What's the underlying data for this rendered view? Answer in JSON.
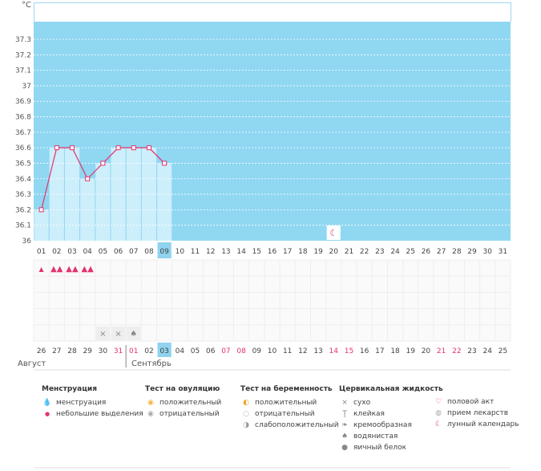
{
  "chart_data": {
    "type": "line",
    "unit_label": "°C",
    "y_ticks": [
      "37.3",
      "37.2",
      "37.1",
      "37",
      "36.9",
      "36.8",
      "36.7",
      "36.6",
      "36.5",
      "36.4",
      "36.3",
      "36.2",
      "36.1",
      "36"
    ],
    "ylim": [
      36,
      37.3
    ],
    "x_top": [
      "01",
      "02",
      "03",
      "04",
      "05",
      "06",
      "07",
      "08",
      "09",
      "10",
      "11",
      "12",
      "13",
      "14",
      "15",
      "16",
      "17",
      "18",
      "19",
      "20",
      "21",
      "22",
      "23",
      "24",
      "25",
      "26",
      "27",
      "28",
      "29",
      "30",
      "31"
    ],
    "x_bottom": [
      "26",
      "27",
      "28",
      "29",
      "30",
      "31",
      "01",
      "02",
      "03",
      "04",
      "05",
      "06",
      "07",
      "08",
      "09",
      "10",
      "11",
      "12",
      "13",
      "14",
      "15",
      "16",
      "17",
      "18",
      "19",
      "20",
      "21",
      "22",
      "23",
      "24",
      "25"
    ],
    "series": [
      {
        "values": [
          36.2,
          36.6,
          36.6,
          36.4,
          36.5,
          36.6,
          36.6,
          36.6,
          36.5
        ]
      }
    ],
    "selected_day": "09",
    "selected_bottom": "03",
    "bottom_red_days": [
      "31",
      "01",
      "07",
      "08",
      "14",
      "15",
      "21",
      "22"
    ],
    "months": [
      "Август",
      "Сентябрь"
    ],
    "menstruation_days": [
      "01",
      "02",
      "03",
      "04"
    ],
    "menstruation_kind": [
      "небольшие выделения",
      "менструация",
      "менструация",
      "менструация"
    ],
    "fluid_marks": [
      {
        "day": "05",
        "kind": "сухо"
      },
      {
        "day": "06",
        "kind": "сухо"
      },
      {
        "day": "07",
        "kind": "водянистая"
      }
    ],
    "lunar_day": "20"
  },
  "colors": {
    "plot_bg": "#90d7f2",
    "bar": "#cdeefb",
    "line": "#e3336f",
    "selected": "#8fd3ef",
    "grid": "#ffffff"
  },
  "legend": {
    "menstruation": {
      "title": "Менструация",
      "items": [
        "менструация",
        "небольшие выделения"
      ]
    },
    "ovulation": {
      "title": "Тест на овуляцию",
      "items": [
        "положительный",
        "отрицательный"
      ]
    },
    "pregnancy": {
      "title": "Тест на беременность",
      "items": [
        "положительный",
        "отрицательный",
        "слабоположительный"
      ]
    },
    "cervical": {
      "title": "Цервикальная жидкость",
      "items": [
        "сухо",
        "клейкая",
        "кремообразная",
        "водянистая",
        "яичный белок"
      ]
    },
    "other": {
      "items": [
        "половой акт",
        "прием лекарств",
        "лунный календарь"
      ]
    }
  }
}
